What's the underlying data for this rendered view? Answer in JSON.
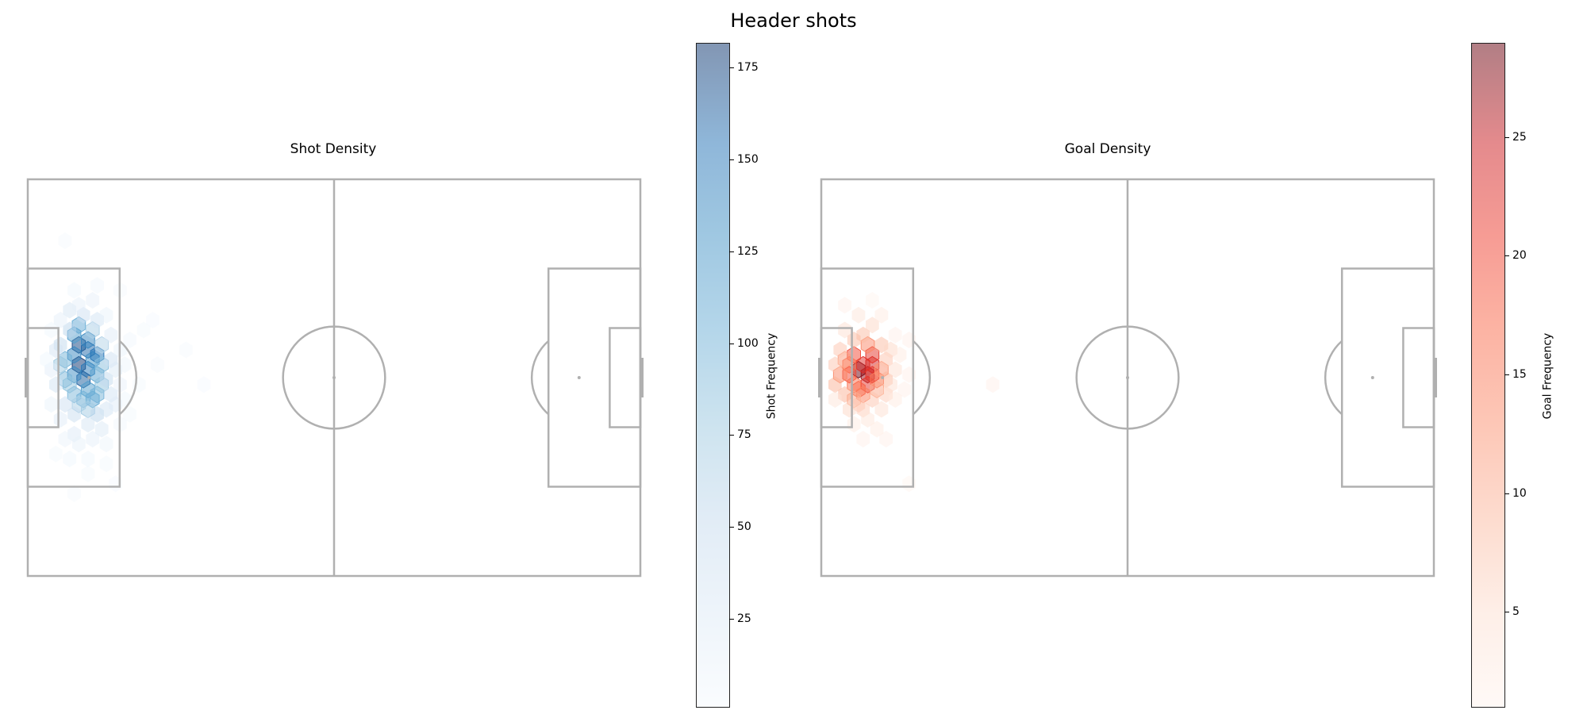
{
  "title": "Header shots",
  "chart_data": [
    {
      "type": "heatmap",
      "subtype": "hexbin",
      "title": "Shot Density",
      "colorbar_label": "Shot Frequency",
      "colormap": "Blues",
      "colorbar_ticks": [
        25,
        50,
        75,
        100,
        125,
        150,
        175
      ],
      "vrange": [
        1,
        182
      ],
      "pitch": {
        "length": 120,
        "width": 80,
        "line_color": "#b0b0b0"
      },
      "cells": [
        [
          10.0,
          37.4,
          182
        ],
        [
          10.0,
          33.4,
          175
        ],
        [
          11.8,
          34.4,
          160
        ],
        [
          9.1,
          35.4,
          140
        ],
        [
          11.8,
          38.4,
          150
        ],
        [
          12.7,
          36.4,
          130
        ],
        [
          13.6,
          35.4,
          155
        ],
        [
          10.9,
          40.4,
          165
        ],
        [
          9.1,
          39.4,
          135
        ],
        [
          11.8,
          32.4,
          140
        ],
        [
          9.1,
          31.4,
          120
        ],
        [
          13.6,
          39.4,
          115
        ],
        [
          10.0,
          29.4,
          110
        ],
        [
          11.8,
          42.4,
          120
        ],
        [
          12.7,
          44.4,
          110
        ],
        [
          13.6,
          43.4,
          100
        ],
        [
          9.1,
          43.4,
          95
        ],
        [
          10.9,
          44.4,
          100
        ],
        [
          7.3,
          36.4,
          100
        ],
        [
          7.3,
          40.4,
          95
        ],
        [
          8.2,
          41.4,
          85
        ],
        [
          6.4,
          37.4,
          80
        ],
        [
          14.5,
          37.4,
          90
        ],
        [
          14.5,
          41.4,
          85
        ],
        [
          10.0,
          45.4,
          70
        ],
        [
          11.8,
          46.4,
          75
        ],
        [
          13.6,
          47.4,
          60
        ],
        [
          12.7,
          30.4,
          70
        ],
        [
          14.5,
          33.4,
          65
        ],
        [
          8.2,
          30.4,
          60
        ],
        [
          6.4,
          33.4,
          55
        ],
        [
          15.4,
          40.4,
          55
        ],
        [
          16.3,
          36.4,
          45
        ],
        [
          16.3,
          43.4,
          40
        ],
        [
          15.4,
          46.4,
          40
        ],
        [
          9.1,
          47.4,
          50
        ],
        [
          7.3,
          45.4,
          45
        ],
        [
          5.5,
          41.4,
          40
        ],
        [
          5.5,
          34.4,
          38
        ],
        [
          10.9,
          27.4,
          45
        ],
        [
          13.6,
          28.4,
          40
        ],
        [
          8.2,
          26.4,
          35
        ],
        [
          11.8,
          49.4,
          35
        ],
        [
          14.5,
          50.4,
          30
        ],
        [
          9.1,
          51.4,
          28
        ],
        [
          6.4,
          48.4,
          25
        ],
        [
          17.2,
          38.4,
          30
        ],
        [
          17.2,
          45.4,
          25
        ],
        [
          4.6,
          38.4,
          22
        ],
        [
          16.3,
          31.4,
          25
        ],
        [
          10.0,
          25.4,
          20
        ],
        [
          12.7,
          24.4,
          18
        ],
        [
          6.4,
          28.4,
          20
        ],
        [
          12.7,
          52.4,
          20
        ],
        [
          10.0,
          53.4,
          16
        ],
        [
          18.1,
          41.4,
          15
        ],
        [
          18.1,
          34.4,
          14
        ],
        [
          4.6,
          45.4,
          14
        ],
        [
          15.4,
          27.4,
          14
        ],
        [
          7.3,
          52.4,
          12
        ],
        [
          15.4,
          53.4,
          10
        ],
        [
          19.0,
          37.4,
          10
        ],
        [
          19.0,
          44.4,
          8
        ],
        [
          11.8,
          56.4,
          8
        ],
        [
          8.2,
          56.4,
          8
        ],
        [
          9.1,
          22.4,
          8
        ],
        [
          13.6,
          21.4,
          6
        ],
        [
          4.6,
          30.4,
          8
        ],
        [
          3.7,
          36.4,
          8
        ],
        [
          20.0,
          32.4,
          6
        ],
        [
          18.1,
          49.4,
          6
        ],
        [
          22.7,
          30.4,
          4
        ],
        [
          25.4,
          37.4,
          3
        ],
        [
          31.0,
          34.4,
          3
        ],
        [
          34.5,
          41.4,
          2
        ],
        [
          20.0,
          47.4,
          4
        ],
        [
          7.3,
          12.4,
          3
        ],
        [
          18.1,
          22.4,
          3
        ],
        [
          9.1,
          63.4,
          3
        ],
        [
          17.2,
          61.4,
          2
        ],
        [
          11.8,
          59.4,
          4
        ],
        [
          15.4,
          57.4,
          4
        ],
        [
          5.5,
          55.4,
          4
        ],
        [
          21.8,
          41.4,
          4
        ],
        [
          24.5,
          28.4,
          2
        ]
      ]
    },
    {
      "type": "heatmap",
      "subtype": "hexbin",
      "title": "Goal Density",
      "colorbar_label": "Goal Frequency",
      "colormap": "Reds",
      "colorbar_ticks": [
        5,
        10,
        15,
        20,
        25
      ],
      "vrange": [
        1,
        29
      ],
      "pitch": {
        "length": 120,
        "width": 80,
        "line_color": "#b0b0b0"
      },
      "cells": [
        [
          7.3,
          38.4,
          29
        ],
        [
          9.1,
          39.4,
          27
        ],
        [
          10.0,
          37.4,
          24
        ],
        [
          8.2,
          37.4,
          23
        ],
        [
          10.0,
          35.4,
          22
        ],
        [
          9.1,
          41.4,
          22
        ],
        [
          10.0,
          39.4,
          22
        ],
        [
          5.5,
          39.4,
          20
        ],
        [
          6.4,
          35.4,
          20
        ],
        [
          7.3,
          42.4,
          18
        ],
        [
          5.5,
          37.4,
          17
        ],
        [
          6.4,
          41.4,
          16
        ],
        [
          10.9,
          40.4,
          16
        ],
        [
          3.7,
          39.4,
          14
        ],
        [
          8.2,
          43.4,
          15
        ],
        [
          9.1,
          33.4,
          14
        ],
        [
          11.8,
          38.4,
          13
        ],
        [
          4.6,
          36.4,
          12
        ],
        [
          6.4,
          44.4,
          11
        ],
        [
          10.9,
          42.4,
          11
        ],
        [
          2.7,
          41.4,
          10
        ],
        [
          4.6,
          43.4,
          10
        ],
        [
          12.7,
          40.4,
          10
        ],
        [
          8.2,
          31.4,
          9
        ],
        [
          11.8,
          33.4,
          9
        ],
        [
          12.7,
          36.4,
          8
        ],
        [
          2.7,
          37.4,
          8
        ],
        [
          3.7,
          34.4,
          8
        ],
        [
          6.4,
          32.4,
          9
        ],
        [
          10.0,
          44.4,
          8
        ],
        [
          7.3,
          45.4,
          8
        ],
        [
          12.7,
          43.4,
          7
        ],
        [
          8.2,
          46.4,
          7
        ],
        [
          10.0,
          29.4,
          6
        ],
        [
          13.6,
          34.4,
          6
        ],
        [
          14.5,
          38.4,
          5
        ],
        [
          5.5,
          46.4,
          6
        ],
        [
          11.8,
          46.4,
          5
        ],
        [
          4.6,
          30.4,
          5
        ],
        [
          13.6,
          41.4,
          5
        ],
        [
          2.7,
          44.4,
          4
        ],
        [
          9.1,
          48.4,
          4
        ],
        [
          7.3,
          27.4,
          4
        ],
        [
          11.8,
          27.4,
          3
        ],
        [
          15.4,
          35.4,
          3
        ],
        [
          14.5,
          44.4,
          3
        ],
        [
          6.4,
          49.4,
          3
        ],
        [
          10.9,
          50.4,
          3
        ],
        [
          14.5,
          31.4,
          2
        ],
        [
          17.2,
          39.4,
          2
        ],
        [
          16.3,
          42.4,
          2
        ],
        [
          8.2,
          52.4,
          2
        ],
        [
          12.7,
          52.4,
          2
        ],
        [
          4.6,
          25.4,
          2
        ],
        [
          17.2,
          32.4,
          2
        ],
        [
          33.6,
          41.4,
          2
        ],
        [
          17.2,
          61.4,
          1
        ],
        [
          10.0,
          24.4,
          1
        ]
      ]
    }
  ]
}
